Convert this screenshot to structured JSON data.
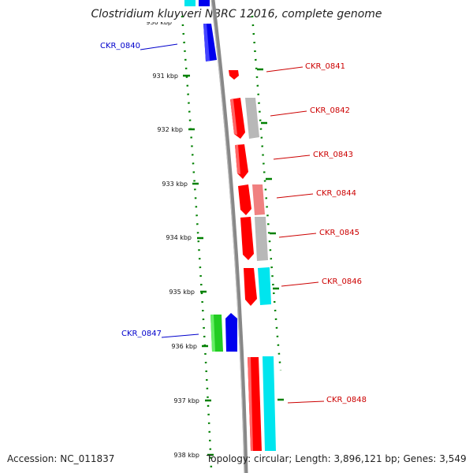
{
  "title": "Clostridium kluyveri NBRC 12016, complete genome",
  "accession": "Accession: NC_011837",
  "topology": "Topology: circular; Length: 3,896,121 bp; Genes: 3,549",
  "ticks": [
    "930 kbp",
    "931 kbp",
    "932 kbp",
    "933 kbp",
    "934 kbp",
    "935 kbp",
    "936 kbp",
    "937 kbp",
    "938 kbp"
  ],
  "gene_labels": [
    {
      "text": "CKR_0840",
      "strand": "reverse"
    },
    {
      "text": "CKR_0841",
      "strand": "forward"
    },
    {
      "text": "CKR_0842",
      "strand": "forward"
    },
    {
      "text": "CKR_0843",
      "strand": "forward"
    },
    {
      "text": "CKR_0844",
      "strand": "forward"
    },
    {
      "text": "CKR_0845",
      "strand": "forward"
    },
    {
      "text": "CKR_0846",
      "strand": "forward"
    },
    {
      "text": "CKR_0847",
      "strand": "reverse"
    },
    {
      "text": "CKR_0848",
      "strand": "forward"
    }
  ],
  "colors": {
    "forward": "#ff0000",
    "forward_light": "#f08080",
    "reverse": "#0000ee",
    "grey": "#b8b8b8",
    "cyan": "#00e5ee",
    "green": "#22cc22",
    "tick": "#008000",
    "backbone": "#888888"
  }
}
